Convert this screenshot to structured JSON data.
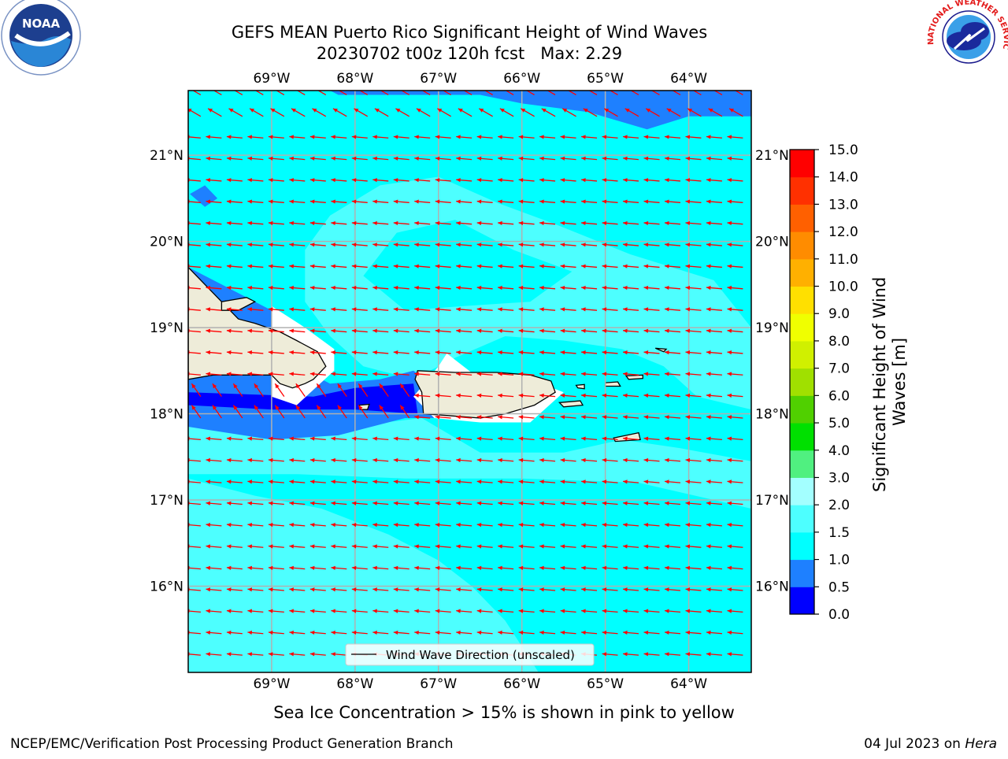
{
  "title": {
    "line1": "GEFS MEAN Puerto Rico Significant Height of Wind Waves",
    "line2": "20230702 t00z 120h fcst   Max: 2.29"
  },
  "map": {
    "lon_range": [
      -70.0,
      -63.25
    ],
    "lat_range": [
      15.0,
      21.75
    ],
    "lon_ticks": [
      {
        "value": -69,
        "label": "69°W"
      },
      {
        "value": -68,
        "label": "68°W"
      },
      {
        "value": -67,
        "label": "67°W"
      },
      {
        "value": -66,
        "label": "66°W"
      },
      {
        "value": -65,
        "label": "65°W"
      },
      {
        "value": -64,
        "label": "64°W"
      }
    ],
    "lat_ticks": [
      {
        "value": 21,
        "label": "21°N"
      },
      {
        "value": 20,
        "label": "20°N"
      },
      {
        "value": 19,
        "label": "19°N"
      },
      {
        "value": 18,
        "label": "18°N"
      },
      {
        "value": 17,
        "label": "17°N"
      },
      {
        "value": 16,
        "label": "16°N"
      }
    ],
    "land_color": "#eeecd9",
    "arrow_color": "#ff0000",
    "grid_color": "#b0b0b0",
    "legend_label": "Wind Wave Direction (unscaled)"
  },
  "colorbar": {
    "label": "Significant Height of Wind Waves [m]",
    "label_lines": [
      "Significant Height of Wind",
      "Waves [m]"
    ],
    "ticks": [
      "0.0",
      "0.5",
      "1.0",
      "1.5",
      "2.0",
      "3.0",
      "4.0",
      "5.0",
      "6.0",
      "7.0",
      "8.0",
      "9.0",
      "10.0",
      "11.0",
      "12.0",
      "13.0",
      "14.0",
      "15.0"
    ],
    "colors": [
      "#0000ff",
      "#1e80ff",
      "#00ffff",
      "#4dffff",
      "#a3ffff",
      "#50f080",
      "#00e000",
      "#50d000",
      "#a0e000",
      "#d0f000",
      "#f0ff00",
      "#ffe000",
      "#ffb000",
      "#ff8c00",
      "#ff6000",
      "#ff3000",
      "#ff0000"
    ]
  },
  "footer": {
    "note": "Sea Ice Concentration > 15% is shown in pink to yellow",
    "left": "NCEP/EMC/Verification Post Processing Product Generation Branch",
    "right_date": "04 Jul 2023 on ",
    "right_machine": "Hera"
  },
  "logos": {
    "noaa_text": "NOAA",
    "nws_text": "NATIONAL WEATHER SERVICE"
  }
}
